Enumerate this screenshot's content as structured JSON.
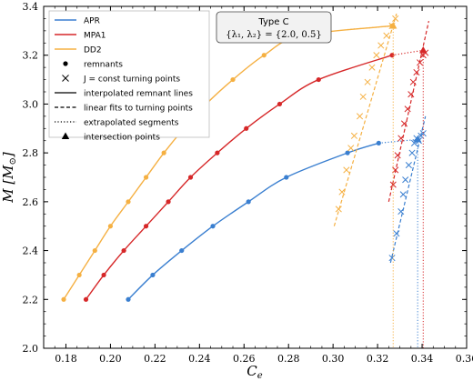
{
  "chart_data": {
    "type": "line",
    "xlabel": "C_e",
    "ylabel": "M [M_⊙]",
    "xlim": [
      0.17,
      0.36
    ],
    "ylim": [
      2.0,
      3.4
    ],
    "grid": false,
    "legend_placement": "top-left",
    "x_ticks": [
      "0.18",
      "0.20",
      "0.22",
      "0.24",
      "0.26",
      "0.28",
      "0.30",
      "0.32",
      "0.34",
      "0.36"
    ],
    "x_tick_values": [
      0.18,
      0.2,
      0.22,
      0.24,
      0.26,
      0.28,
      0.3,
      0.32,
      0.34,
      0.36
    ],
    "y_ticks": [
      "2.0",
      "2.2",
      "2.4",
      "2.6",
      "2.8",
      "3.0",
      "3.2",
      "3.4"
    ],
    "y_tick_values": [
      2.0,
      2.2,
      2.4,
      2.6,
      2.8,
      3.0,
      3.2,
      3.4
    ],
    "annotation": {
      "title": "Type C",
      "params": "{λ₁, λ₂} = {2.0, 0.5}"
    },
    "legend": {
      "series_entries": [
        "APR",
        "MPA1",
        "DD2"
      ],
      "marker_entries": [
        {
          "symbol": "dot",
          "label": "remnants"
        },
        {
          "symbol": "cross",
          "label": "J = const turning points"
        },
        {
          "symbol": "solid",
          "label": "interpolated remnant lines"
        },
        {
          "symbol": "dashed",
          "label": "linear fits to turning points"
        },
        {
          "symbol": "dotted",
          "label": "extrapolated segments"
        },
        {
          "symbol": "triangle",
          "label": "intersection points"
        }
      ]
    },
    "series": [
      {
        "name": "APR",
        "color": "#3a7fd0",
        "remnants": [
          {
            "x": 0.208,
            "y": 2.2
          },
          {
            "x": 0.219,
            "y": 2.3
          },
          {
            "x": 0.232,
            "y": 2.4
          },
          {
            "x": 0.246,
            "y": 2.5
          },
          {
            "x": 0.262,
            "y": 2.6
          },
          {
            "x": 0.279,
            "y": 2.7
          },
          {
            "x": 0.3065,
            "y": 2.8
          },
          {
            "x": 0.3205,
            "y": 2.84
          }
        ],
        "extrapolated": [
          {
            "x": 0.3205,
            "y": 2.84
          },
          {
            "x": 0.338,
            "y": 2.855
          }
        ],
        "turning_points": [
          {
            "x": 0.3265,
            "y": 2.37
          },
          {
            "x": 0.3285,
            "y": 2.47
          },
          {
            "x": 0.3305,
            "y": 2.56
          },
          {
            "x": 0.3315,
            "y": 2.63
          },
          {
            "x": 0.3325,
            "y": 2.69
          },
          {
            "x": 0.334,
            "y": 2.75
          },
          {
            "x": 0.3355,
            "y": 2.8
          },
          {
            "x": 0.3365,
            "y": 2.84
          },
          {
            "x": 0.3375,
            "y": 2.86
          },
          {
            "x": 0.3385,
            "y": 2.85
          },
          {
            "x": 0.3395,
            "y": 2.87
          },
          {
            "x": 0.3405,
            "y": 2.88
          }
        ],
        "fit_line": [
          {
            "x": 0.3258,
            "y": 2.35
          },
          {
            "x": 0.3415,
            "y": 2.95
          }
        ],
        "intersection": {
          "x": 0.338,
          "y": 2.855
        }
      },
      {
        "name": "MPA1",
        "color": "#d62728",
        "remnants": [
          {
            "x": 0.189,
            "y": 2.2
          },
          {
            "x": 0.197,
            "y": 2.3
          },
          {
            "x": 0.206,
            "y": 2.4
          },
          {
            "x": 0.216,
            "y": 2.5
          },
          {
            "x": 0.226,
            "y": 2.6
          },
          {
            "x": 0.236,
            "y": 2.7
          },
          {
            "x": 0.248,
            "y": 2.8
          },
          {
            "x": 0.261,
            "y": 2.9
          },
          {
            "x": 0.276,
            "y": 3.0
          },
          {
            "x": 0.2935,
            "y": 3.1
          },
          {
            "x": 0.3265,
            "y": 3.2
          }
        ],
        "extrapolated": [
          {
            "x": 0.3265,
            "y": 3.2
          },
          {
            "x": 0.3405,
            "y": 3.22
          }
        ],
        "turning_points": [
          {
            "x": 0.327,
            "y": 2.67
          },
          {
            "x": 0.328,
            "y": 2.73
          },
          {
            "x": 0.329,
            "y": 2.79
          },
          {
            "x": 0.3305,
            "y": 2.86
          },
          {
            "x": 0.332,
            "y": 2.92
          },
          {
            "x": 0.3335,
            "y": 2.98
          },
          {
            "x": 0.335,
            "y": 3.04
          },
          {
            "x": 0.336,
            "y": 3.09
          },
          {
            "x": 0.3375,
            "y": 3.13
          },
          {
            "x": 0.339,
            "y": 3.17
          },
          {
            "x": 0.3405,
            "y": 3.2
          },
          {
            "x": 0.3415,
            "y": 3.21
          }
        ],
        "fit_line": [
          {
            "x": 0.325,
            "y": 2.6
          },
          {
            "x": 0.343,
            "y": 3.34
          }
        ],
        "intersection": {
          "x": 0.3405,
          "y": 3.22
        }
      },
      {
        "name": "DD2",
        "color": "#f5b042",
        "remnants": [
          {
            "x": 0.179,
            "y": 2.2
          },
          {
            "x": 0.186,
            "y": 2.3
          },
          {
            "x": 0.193,
            "y": 2.4
          },
          {
            "x": 0.2,
            "y": 2.5
          },
          {
            "x": 0.208,
            "y": 2.6
          },
          {
            "x": 0.216,
            "y": 2.7
          },
          {
            "x": 0.224,
            "y": 2.8
          },
          {
            "x": 0.233,
            "y": 2.9
          },
          {
            "x": 0.243,
            "y": 3.0
          },
          {
            "x": 0.255,
            "y": 3.1
          },
          {
            "x": 0.269,
            "y": 3.2
          },
          {
            "x": 0.2855,
            "y": 3.28
          },
          {
            "x": 0.3265,
            "y": 3.32
          }
        ],
        "extrapolated": [
          {
            "x": 0.3065,
            "y": 3.305
          },
          {
            "x": 0.327,
            "y": 3.32
          }
        ],
        "turning_points": [
          {
            "x": 0.3025,
            "y": 2.57
          },
          {
            "x": 0.304,
            "y": 2.64
          },
          {
            "x": 0.306,
            "y": 2.73
          },
          {
            "x": 0.308,
            "y": 2.82
          },
          {
            "x": 0.3095,
            "y": 2.87
          },
          {
            "x": 0.312,
            "y": 2.95
          },
          {
            "x": 0.3135,
            "y": 3.03
          },
          {
            "x": 0.3155,
            "y": 3.09
          },
          {
            "x": 0.3175,
            "y": 3.15
          },
          {
            "x": 0.3195,
            "y": 3.2
          },
          {
            "x": 0.3215,
            "y": 3.24
          },
          {
            "x": 0.324,
            "y": 3.28
          },
          {
            "x": 0.3265,
            "y": 3.32
          },
          {
            "x": 0.328,
            "y": 3.35
          }
        ],
        "fit_line": [
          {
            "x": 0.3005,
            "y": 2.5
          },
          {
            "x": 0.3285,
            "y": 3.37
          }
        ],
        "intersection": {
          "x": 0.327,
          "y": 3.32
        }
      }
    ]
  }
}
